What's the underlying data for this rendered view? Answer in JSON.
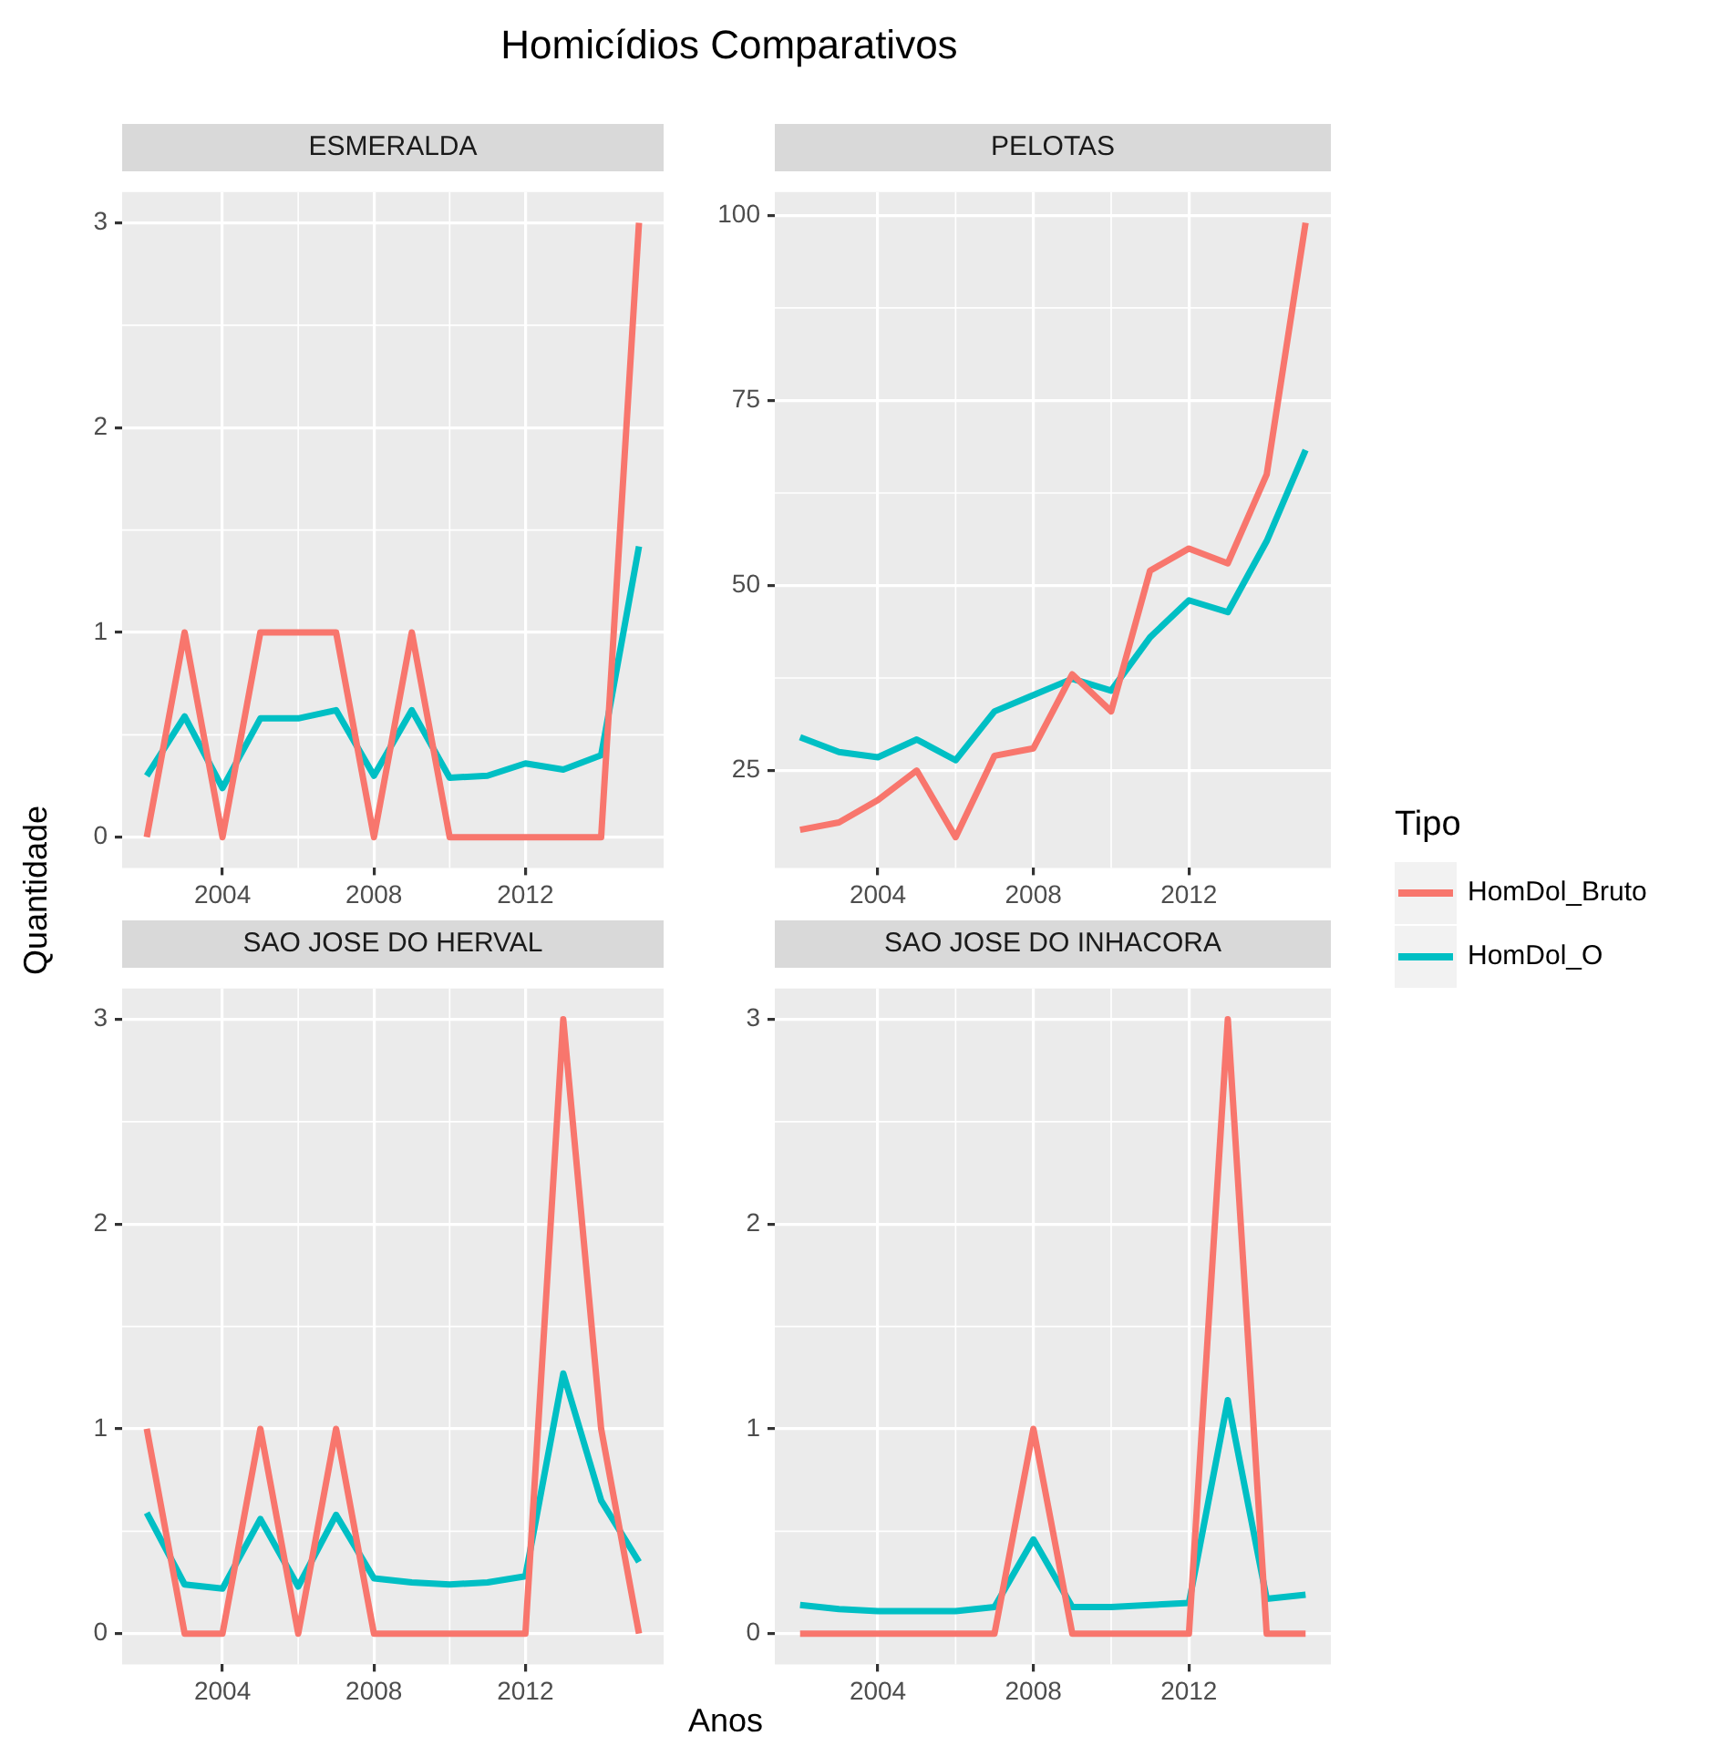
{
  "chart_data": [
    {
      "type": "line",
      "title": "Homicídios Comparativos",
      "subtitle": "ESMERALDA",
      "ylabel": "Quantidade",
      "legend": "right",
      "legend_title": "Tipo",
      "x": [
        2002,
        2003,
        2004,
        2005,
        2006,
        2007,
        2008,
        2009,
        2010,
        2011,
        2012,
        2013,
        2014,
        2015
      ],
      "xlim": [
        2001.35,
        2015.65
      ],
      "xticks": [
        2004,
        2008,
        2012
      ],
      "ylim": [
        -0.15,
        3.15
      ],
      "yticks": [
        0,
        1,
        2,
        3
      ],
      "grid": true,
      "series": [
        {
          "name": "HomDol_Bruto",
          "color": "#f8766d",
          "values": [
            0,
            1,
            0,
            1,
            1,
            1,
            0,
            1,
            0,
            0,
            0,
            0,
            0,
            3
          ]
        },
        {
          "name": "HomDol_O",
          "color": "#00bfc4",
          "values": [
            0.3,
            0.59,
            0.24,
            0.58,
            0.58,
            0.62,
            0.3,
            0.62,
            0.29,
            0.3,
            0.36,
            0.33,
            0.4,
            1.42
          ]
        }
      ]
    },
    {
      "type": "line",
      "subtitle": "PELOTAS",
      "x": [
        2002,
        2003,
        2004,
        2005,
        2006,
        2007,
        2008,
        2009,
        2010,
        2011,
        2012,
        2013,
        2014,
        2015
      ],
      "xlim": [
        2001.35,
        2015.65
      ],
      "xticks": [
        2004,
        2008,
        2012
      ],
      "ylim": [
        11.85,
        103.15
      ],
      "yticks": [
        25,
        50,
        75,
        100
      ],
      "grid": true,
      "series": [
        {
          "color": "#f8766d",
          "values": [
            17,
            18,
            21,
            25,
            16,
            27,
            28,
            38,
            33,
            52,
            55,
            53,
            65,
            99
          ]
        },
        {
          "color": "#00bfc4",
          "values": [
            29.5,
            27.5,
            26.8,
            29.2,
            26.4,
            33,
            35.2,
            37.4,
            35.8,
            43,
            48,
            46.4,
            56,
            68.3
          ]
        }
      ]
    },
    {
      "type": "line",
      "subtitle": "SAO JOSE DO HERVAL",
      "xlabel": "Anos",
      "x": [
        2002,
        2003,
        2004,
        2005,
        2006,
        2007,
        2008,
        2009,
        2010,
        2011,
        2012,
        2013,
        2014,
        2015
      ],
      "xlim": [
        2001.35,
        2015.65
      ],
      "xticks": [
        2004,
        2008,
        2012
      ],
      "ylim": [
        -0.15,
        3.15
      ],
      "yticks": [
        0,
        1,
        2,
        3
      ],
      "grid": true,
      "series": [
        {
          "color": "#f8766d",
          "values": [
            1,
            0,
            0,
            1,
            0,
            1,
            0,
            0,
            0,
            0,
            0,
            3,
            1,
            0
          ]
        },
        {
          "color": "#00bfc4",
          "values": [
            0.59,
            0.24,
            0.22,
            0.56,
            0.23,
            0.58,
            0.27,
            0.25,
            0.24,
            0.25,
            0.28,
            1.27,
            0.65,
            0.35
          ]
        }
      ]
    },
    {
      "type": "line",
      "subtitle": "SAO JOSE DO INHACORA",
      "x": [
        2002,
        2003,
        2004,
        2005,
        2006,
        2007,
        2008,
        2009,
        2010,
        2011,
        2012,
        2013,
        2014,
        2015
      ],
      "xlim": [
        2001.35,
        2015.65
      ],
      "xticks": [
        2004,
        2008,
        2012
      ],
      "ylim": [
        -0.15,
        3.15
      ],
      "yticks": [
        0,
        1,
        2,
        3
      ],
      "grid": true,
      "series": [
        {
          "color": "#f8766d",
          "values": [
            0,
            0,
            0,
            0,
            0,
            0,
            1,
            0,
            0,
            0,
            0,
            3,
            0,
            0
          ]
        },
        {
          "color": "#00bfc4",
          "values": [
            0.14,
            0.12,
            0.11,
            0.11,
            0.11,
            0.13,
            0.46,
            0.13,
            0.13,
            0.14,
            0.15,
            1.14,
            0.17,
            0.19
          ]
        }
      ]
    }
  ]
}
